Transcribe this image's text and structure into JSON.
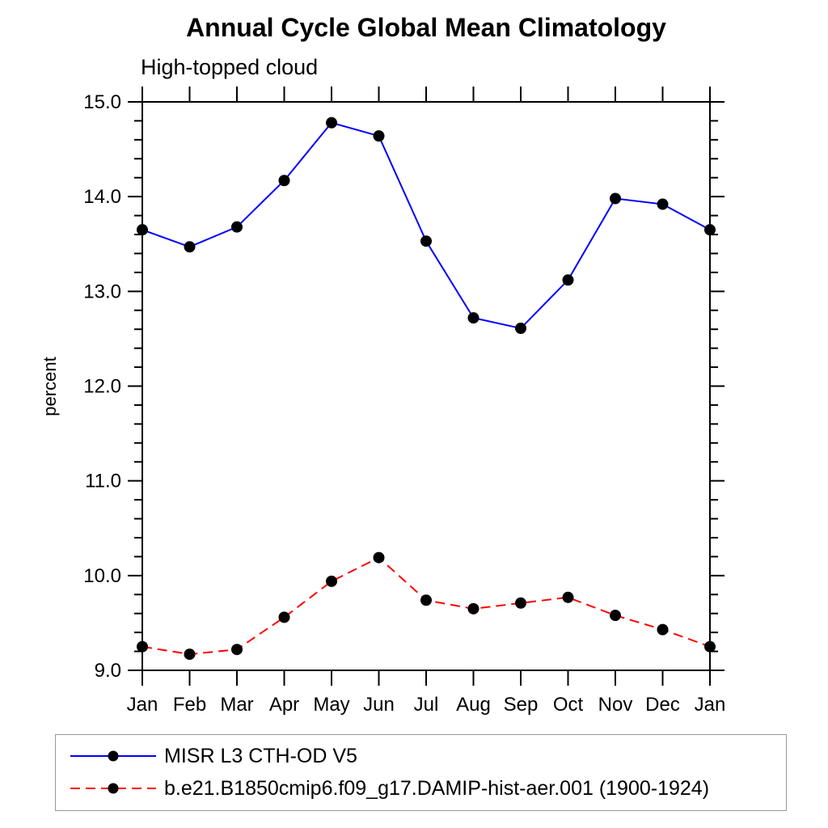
{
  "title": "Annual Cycle Global Mean Climatology",
  "subtitle": "High-topped cloud",
  "ylabel": "percent",
  "chart_data": {
    "type": "line",
    "title": "Annual Cycle Global Mean Climatology",
    "subtitle": "High-topped cloud",
    "xlabel": "",
    "ylabel": "percent",
    "categories": [
      "Jan",
      "Feb",
      "Mar",
      "Apr",
      "May",
      "Jun",
      "Jul",
      "Aug",
      "Sep",
      "Oct",
      "Nov",
      "Dec",
      "Jan"
    ],
    "series": [
      {
        "name": "MISR L3 CTH-OD V5",
        "color": "#0000ff",
        "dash": "solid",
        "marker": "circle",
        "marker_color": "#000000",
        "values": [
          13.65,
          13.47,
          13.68,
          14.17,
          14.78,
          14.64,
          13.53,
          12.72,
          12.61,
          13.12,
          13.98,
          13.92,
          13.65
        ]
      },
      {
        "name": "b.e21.B1850cmip6.f09_g17.DAMIP-hist-aer.001 (1900-1924)",
        "color": "#ff0000",
        "dash": "dashed",
        "marker": "circle",
        "marker_color": "#000000",
        "values": [
          9.25,
          9.17,
          9.22,
          9.56,
          9.94,
          10.19,
          9.74,
          9.65,
          9.71,
          9.77,
          9.58,
          9.43,
          9.25
        ]
      }
    ],
    "ylim": [
      9.0,
      15.0
    ],
    "y_major_step": 1.0,
    "y_minor_step": 0.2,
    "y_tick_labels": [
      "9.0",
      "10.0",
      "11.0",
      "12.0",
      "13.0",
      "14.0",
      "15.0"
    ],
    "grid": false,
    "legend_position": "bottom",
    "axis_color": "#000000",
    "legend_border_color": "#999999"
  }
}
